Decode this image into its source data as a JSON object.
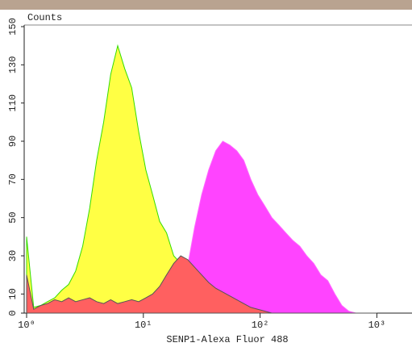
{
  "chart_data": {
    "type": "area",
    "y_label": "Counts",
    "x_label": "SENP1-Alexa Fluor 488",
    "log_x": true,
    "xlim": [
      1,
      2000
    ],
    "xticks": [
      {
        "value": 1,
        "label": "10⁰"
      },
      {
        "value": 10,
        "label": "10¹"
      },
      {
        "value": 100,
        "label": "10²"
      },
      {
        "value": 1000,
        "label": "10³"
      }
    ],
    "ylim": [
      0,
      150
    ],
    "yticks": [
      0,
      10,
      30,
      50,
      70,
      90,
      110,
      130,
      150
    ],
    "x": [
      1,
      1.15,
      1.32,
      1.51,
      1.74,
      2,
      2.29,
      2.63,
      3.02,
      3.47,
      3.98,
      4.57,
      5.25,
      6.03,
      6.92,
      7.94,
      9.12,
      10.5,
      12,
      13.8,
      15.8,
      18.2,
      20.9,
      24,
      27.5,
      31.6,
      36.3,
      41.7,
      47.9,
      55,
      63.1,
      72.4,
      83.2,
      95.5,
      110,
      126,
      145,
      166,
      191,
      219,
      251,
      288,
      331,
      380,
      437,
      501,
      575,
      661,
      759,
      871,
      1000
    ],
    "series": [
      {
        "color": "#ff44ff",
        "edge_color": "#ff66ff",
        "values": [
          0,
          1,
          1,
          2,
          2,
          2,
          2,
          2,
          2,
          2,
          2,
          2,
          2,
          2,
          2,
          2,
          2,
          2,
          2,
          2,
          2,
          3,
          8,
          25,
          45,
          62,
          75,
          85,
          90,
          88,
          85,
          80,
          70,
          62,
          56,
          50,
          46,
          42,
          38,
          35,
          30,
          26,
          20,
          17,
          10,
          4,
          1,
          0,
          0,
          0,
          0
        ]
      },
      {
        "color": "#ffff44",
        "edge_color": "#33dd00",
        "values": [
          40,
          3,
          4,
          6,
          8,
          12,
          15,
          22,
          35,
          55,
          80,
          100,
          125,
          140,
          128,
          118,
          95,
          75,
          62,
          48,
          42,
          30,
          26,
          20,
          15,
          12,
          10,
          8,
          6,
          4,
          3,
          2,
          1,
          1,
          0,
          0,
          0,
          0,
          0,
          0,
          0,
          0,
          0,
          0,
          0,
          0,
          0,
          0,
          0,
          0,
          0
        ]
      },
      {
        "color": "#ff6060",
        "edge_color": "#555555",
        "values": [
          20,
          2,
          4,
          5,
          7,
          6,
          8,
          6,
          7,
          8,
          6,
          5,
          7,
          5,
          6,
          7,
          6,
          8,
          10,
          14,
          20,
          26,
          30,
          28,
          24,
          20,
          16,
          13,
          11,
          9,
          7,
          5,
          3,
          2,
          1,
          0,
          0,
          0,
          0,
          0,
          0,
          0,
          0,
          0,
          0,
          0,
          0,
          0,
          0,
          0,
          0
        ]
      }
    ]
  }
}
